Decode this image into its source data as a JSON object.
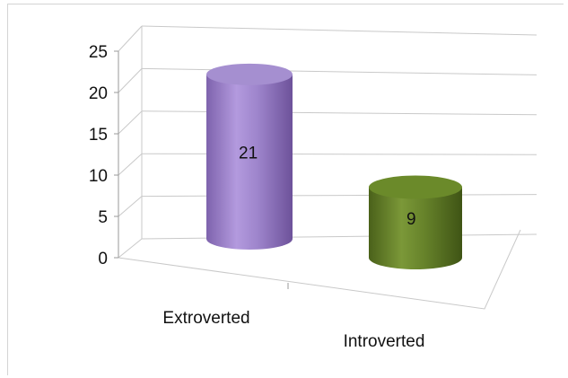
{
  "chart_data": {
    "type": "bar",
    "style": "3d-cylinder",
    "categories": [
      "Extroverted",
      "Introverted"
    ],
    "values": [
      21,
      9
    ],
    "data_labels": [
      "21",
      "9"
    ],
    "colors": [
      "#9b80c8",
      "#5f7a24"
    ],
    "y_ticks": [
      "0",
      "5",
      "10",
      "15",
      "20",
      "25"
    ],
    "ylim": [
      0,
      25
    ],
    "grid": true,
    "legend": "none"
  }
}
